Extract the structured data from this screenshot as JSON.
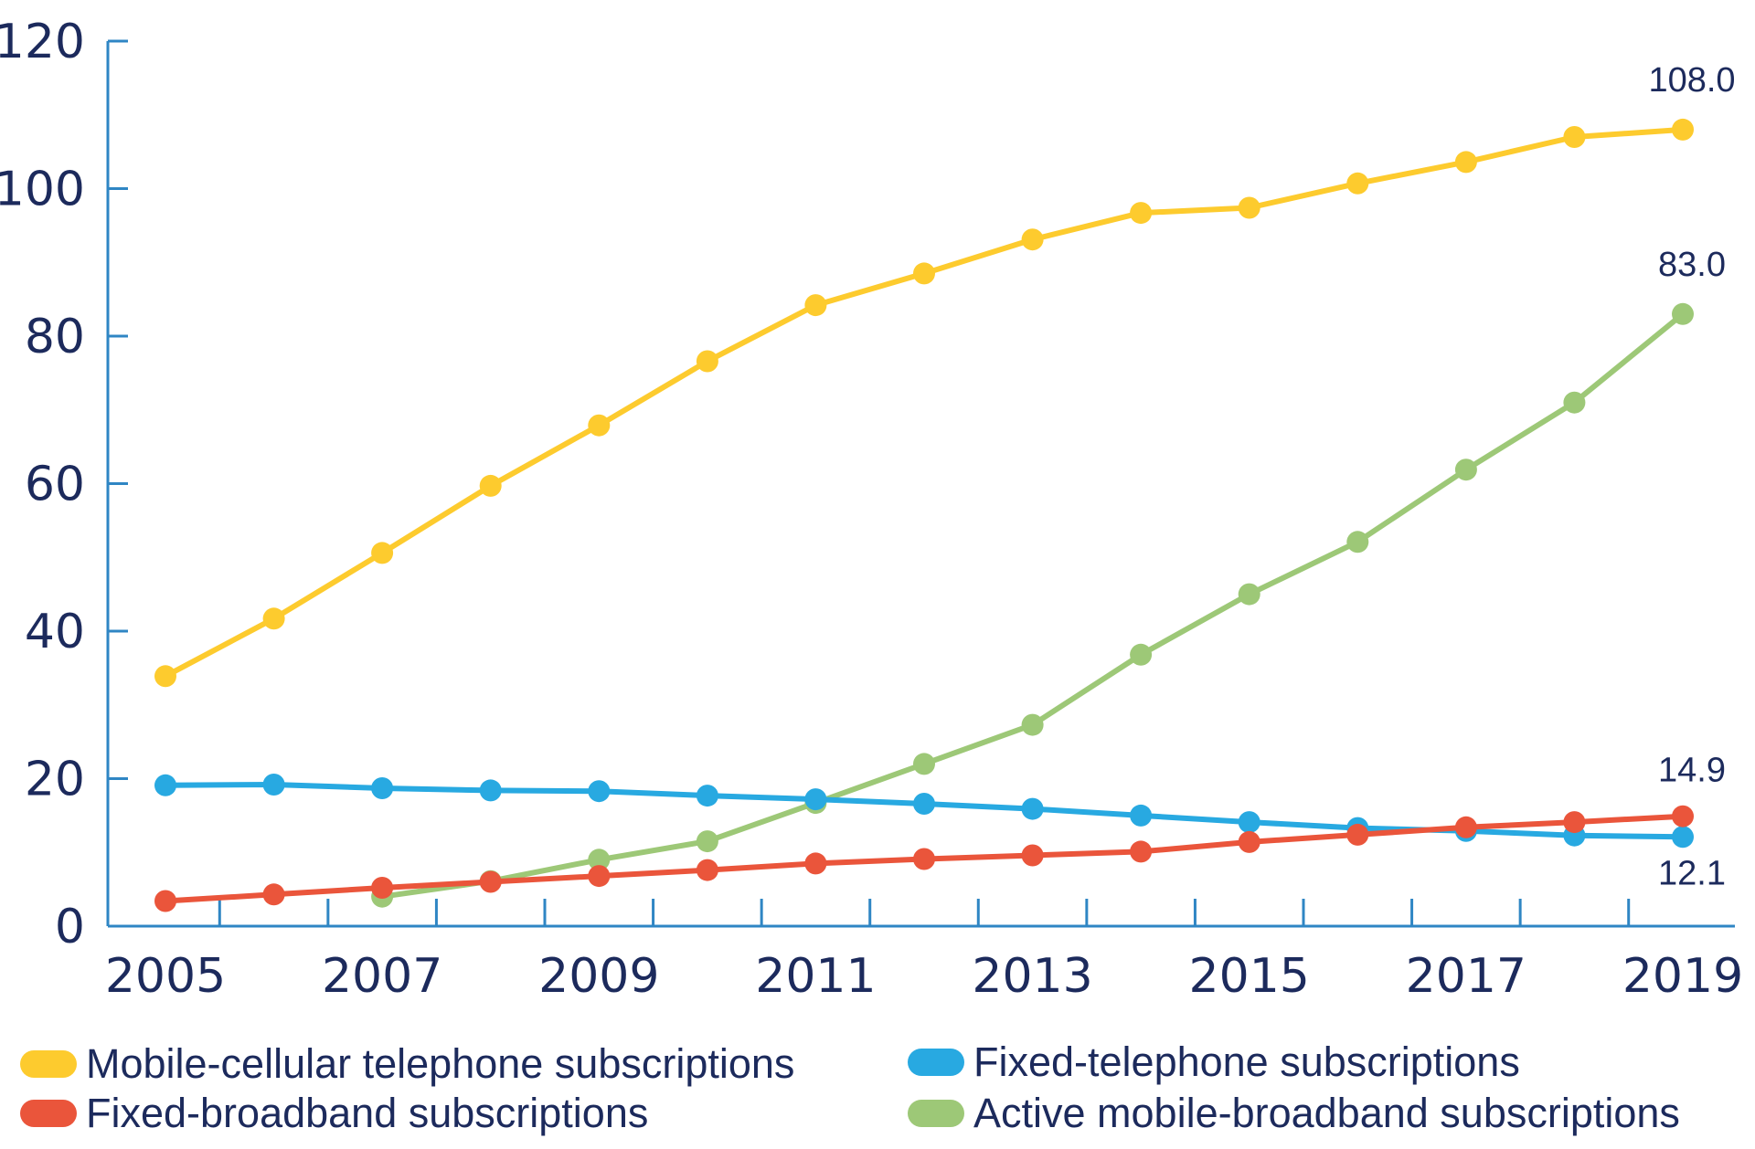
{
  "chart_data": {
    "type": "line",
    "x": [
      2005,
      2006,
      2007,
      2008,
      2009,
      2010,
      2011,
      2012,
      2013,
      2014,
      2015,
      2016,
      2017,
      2018,
      2019
    ],
    "xticks": [
      "2005",
      "2007",
      "2009",
      "2011",
      "2013",
      "2015",
      "2017",
      "2019"
    ],
    "yticks": [
      "0",
      "20",
      "40",
      "60",
      "80",
      "100",
      "120"
    ],
    "ylim": [
      0,
      120
    ],
    "xlim": [
      2005,
      2019
    ],
    "grid": false,
    "legend_position": "bottom",
    "series": [
      {
        "name": "Mobile-cellular telephone subscriptions",
        "color": "#fdcb2e",
        "x": [
          2005,
          2006,
          2007,
          2008,
          2009,
          2010,
          2011,
          2012,
          2013,
          2014,
          2015,
          2016,
          2017,
          2018,
          2019
        ],
        "values": [
          33.9,
          41.7,
          50.6,
          59.7,
          67.9,
          76.6,
          84.2,
          88.5,
          93.1,
          96.7,
          97.4,
          100.7,
          103.6,
          107.0,
          108.0
        ],
        "end_label": "108.0"
      },
      {
        "name": "Fixed-telephone subscriptions",
        "color": "#28a9e1",
        "x": [
          2005,
          2006,
          2007,
          2008,
          2009,
          2010,
          2011,
          2012,
          2013,
          2014,
          2015,
          2016,
          2017,
          2018,
          2019
        ],
        "values": [
          19.1,
          19.2,
          18.7,
          18.4,
          18.3,
          17.7,
          17.2,
          16.6,
          15.9,
          15.0,
          14.1,
          13.3,
          12.9,
          12.3,
          12.1
        ],
        "end_label": "12.1"
      },
      {
        "name": "Fixed-broadband subscriptions",
        "color": "#ea553b",
        "x": [
          2005,
          2006,
          2007,
          2008,
          2009,
          2010,
          2011,
          2012,
          2013,
          2014,
          2015,
          2016,
          2017,
          2018,
          2019
        ],
        "values": [
          3.4,
          4.3,
          5.2,
          6.0,
          6.8,
          7.6,
          8.5,
          9.1,
          9.6,
          10.1,
          11.4,
          12.4,
          13.4,
          14.1,
          14.9
        ],
        "end_label": "14.9"
      },
      {
        "name": "Active mobile-broadband subscriptions",
        "color": "#9dc877",
        "x": [
          2007,
          2008,
          2009,
          2010,
          2011,
          2012,
          2013,
          2014,
          2015,
          2016,
          2017,
          2018,
          2019
        ],
        "values": [
          4.0,
          6.1,
          9.0,
          11.5,
          16.7,
          22.0,
          27.3,
          36.8,
          45.0,
          52.1,
          61.9,
          71.0,
          83.0
        ],
        "end_label": "83.0"
      }
    ]
  },
  "legend": {
    "items": [
      {
        "label": "Mobile-cellular telephone subscriptions",
        "color": "#fdcb2e"
      },
      {
        "label": "Fixed-telephone subscriptions",
        "color": "#28a9e1"
      },
      {
        "label": "Fixed-broadband subscriptions",
        "color": "#ea553b"
      },
      {
        "label": "Active mobile-broadband subscriptions",
        "color": "#9dc877"
      }
    ]
  },
  "colors": {
    "axis": "#2f86c4",
    "text": "#1c2a5c"
  }
}
